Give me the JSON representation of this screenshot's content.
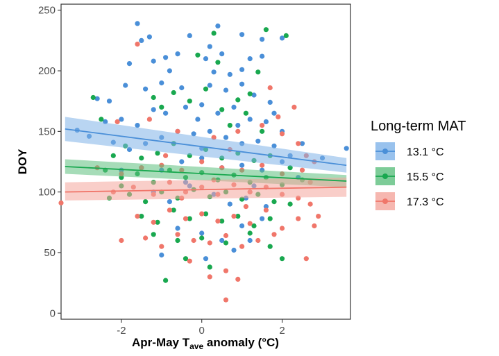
{
  "chart_data": {
    "type": "scatter",
    "title": "",
    "xlabel_prefix": "Apr-May T",
    "xlabel_sub": "ave",
    "xlabel_suffix": " anomaly (°C)",
    "ylabel": "DOY",
    "xlim": [
      -3.5,
      3.7
    ],
    "ylim": [
      -5,
      255
    ],
    "x_ticks": [
      -2,
      0,
      2
    ],
    "x_tick_labels": [
      "-2",
      "0",
      "2"
    ],
    "y_ticks": [
      0,
      50,
      100,
      150,
      200,
      250
    ],
    "y_tick_labels": [
      "0",
      "50",
      "100",
      "150",
      "200",
      "250"
    ],
    "grid": false,
    "legend": {
      "title": "Long-term MAT",
      "placement": "right"
    },
    "series": [
      {
        "name": "13.1 °C",
        "color": "#4a8fd8",
        "band_color": "#7fb3e8",
        "trend": {
          "x0": -3.4,
          "y0": 152,
          "x1": 3.6,
          "y1": 122,
          "lower0": 142,
          "upper0": 162,
          "lower1": 116,
          "upper1": 128
        },
        "points": [
          [
            -1.6,
            239
          ],
          [
            -1.5,
            225
          ],
          [
            -1.3,
            228
          ],
          [
            -0.3,
            229
          ],
          [
            0.4,
            237
          ],
          [
            1.0,
            230
          ],
          [
            1.5,
            226
          ],
          [
            2.0,
            227
          ],
          [
            -0.9,
            211
          ],
          [
            -0.6,
            214
          ],
          [
            0.1,
            210
          ],
          [
            0.2,
            220
          ],
          [
            0.5,
            214
          ],
          [
            1.2,
            210
          ],
          [
            1.5,
            212
          ],
          [
            -1.8,
            206
          ],
          [
            -1.2,
            208
          ],
          [
            -0.8,
            200
          ],
          [
            0.3,
            199
          ],
          [
            0.7,
            197
          ],
          [
            1.0,
            201
          ],
          [
            -2.6,
            177
          ],
          [
            -2.3,
            175
          ],
          [
            -1.9,
            188
          ],
          [
            -1.4,
            185
          ],
          [
            -1.0,
            190
          ],
          [
            -0.5,
            186
          ],
          [
            0.2,
            188
          ],
          [
            0.6,
            184
          ],
          [
            1.0,
            189
          ],
          [
            1.3,
            180
          ],
          [
            1.7,
            174
          ],
          [
            -3.1,
            151
          ],
          [
            -2.8,
            146
          ],
          [
            -2.4,
            158
          ],
          [
            -2.0,
            160
          ],
          [
            -1.6,
            155
          ],
          [
            -1.2,
            168
          ],
          [
            -0.9,
            165
          ],
          [
            -0.4,
            170
          ],
          [
            0.0,
            172
          ],
          [
            0.4,
            165
          ],
          [
            0.8,
            170
          ],
          [
            1.2,
            160
          ],
          [
            1.6,
            158
          ],
          [
            2.0,
            150
          ],
          [
            2.5,
            140
          ],
          [
            3.0,
            128
          ],
          [
            3.6,
            136
          ],
          [
            -2.2,
            141
          ],
          [
            -1.8,
            135
          ],
          [
            -1.4,
            140
          ],
          [
            -1.0,
            145
          ],
          [
            -0.6,
            150
          ],
          [
            -0.2,
            148
          ],
          [
            0.2,
            150
          ],
          [
            0.6,
            145
          ],
          [
            1.0,
            140
          ],
          [
            1.4,
            142
          ],
          [
            1.8,
            138
          ],
          [
            2.2,
            130
          ],
          [
            -1.5,
            120
          ],
          [
            -1.0,
            118
          ],
          [
            -0.5,
            125
          ],
          [
            0.0,
            128
          ],
          [
            0.5,
            120
          ],
          [
            1.0,
            122
          ],
          [
            1.5,
            118
          ],
          [
            2.0,
            125
          ],
          [
            2.4,
            112
          ],
          [
            -1.2,
            100
          ],
          [
            -0.8,
            92
          ],
          [
            -0.3,
            105
          ],
          [
            0.3,
            98
          ],
          [
            0.7,
            90
          ],
          [
            1.1,
            95
          ],
          [
            1.6,
            88
          ],
          [
            -0.6,
            70
          ],
          [
            0.0,
            66
          ],
          [
            0.5,
            60
          ],
          [
            1.0,
            72
          ],
          [
            1.5,
            78
          ],
          [
            -1.0,
            48
          ],
          [
            0.1,
            45
          ],
          [
            0.8,
            52
          ],
          [
            1.2,
            60
          ],
          [
            -0.7,
            140
          ],
          [
            -0.1,
            160
          ],
          [
            0.9,
            155
          ],
          [
            1.8,
            165
          ],
          [
            -2.0,
            118
          ],
          [
            0.0,
            136
          ],
          [
            -0.4,
            108
          ],
          [
            1.3,
            105
          ]
        ]
      },
      {
        "name": "15.5 °C",
        "color": "#19a84f",
        "band_color": "#5cbf7e",
        "trend": {
          "x0": -3.4,
          "y0": 121,
          "x1": 3.6,
          "y1": 109,
          "lower0": 115,
          "upper0": 127,
          "lower1": 104,
          "upper1": 114
        },
        "points": [
          [
            0.3,
            231
          ],
          [
            1.6,
            234
          ],
          [
            2.1,
            229
          ],
          [
            -0.1,
            213
          ],
          [
            0.4,
            207
          ],
          [
            1.4,
            199
          ],
          [
            -1.2,
            178
          ],
          [
            -0.7,
            182
          ],
          [
            0.1,
            185
          ],
          [
            0.9,
            176
          ],
          [
            1.2,
            181
          ],
          [
            -2.7,
            178
          ],
          [
            -2.5,
            160
          ],
          [
            -1.0,
            170
          ],
          [
            -0.3,
            175
          ],
          [
            0.5,
            168
          ],
          [
            1.1,
            165
          ],
          [
            -2.2,
            130
          ],
          [
            -1.9,
            138
          ],
          [
            -1.5,
            128
          ],
          [
            -1.1,
            132
          ],
          [
            -0.7,
            140
          ],
          [
            -0.3,
            130
          ],
          [
            0.1,
            135
          ],
          [
            0.5,
            128
          ],
          [
            0.9,
            132
          ],
          [
            1.3,
            126
          ],
          [
            1.7,
            130
          ],
          [
            2.2,
            120
          ],
          [
            -2.4,
            118
          ],
          [
            -2.0,
            112
          ],
          [
            -1.6,
            115
          ],
          [
            -1.2,
            108
          ],
          [
            -0.8,
            118
          ],
          [
            -0.4,
            112
          ],
          [
            0.0,
            116
          ],
          [
            0.4,
            110
          ],
          [
            0.8,
            114
          ],
          [
            1.2,
            108
          ],
          [
            1.6,
            112
          ],
          [
            2.0,
            106
          ],
          [
            2.5,
            110
          ],
          [
            -1.8,
            98
          ],
          [
            -1.4,
            92
          ],
          [
            -1.0,
            100
          ],
          [
            -0.6,
            95
          ],
          [
            -0.2,
            102
          ],
          [
            0.2,
            96
          ],
          [
            0.6,
            100
          ],
          [
            1.0,
            94
          ],
          [
            1.4,
            98
          ],
          [
            1.8,
            92
          ],
          [
            2.2,
            90
          ],
          [
            -1.5,
            80
          ],
          [
            -1.1,
            75
          ],
          [
            -0.7,
            85
          ],
          [
            -0.3,
            78
          ],
          [
            0.1,
            82
          ],
          [
            0.5,
            76
          ],
          [
            0.9,
            80
          ],
          [
            1.3,
            72
          ],
          [
            1.7,
            78
          ],
          [
            -1.2,
            65
          ],
          [
            -0.6,
            60
          ],
          [
            0.0,
            62
          ],
          [
            0.6,
            58
          ],
          [
            1.2,
            66
          ],
          [
            1.7,
            55
          ],
          [
            -0.4,
            45
          ],
          [
            0.2,
            38
          ],
          [
            -0.9,
            27
          ],
          [
            2.0,
            45
          ],
          [
            -2.0,
            105
          ],
          [
            -2.3,
            95
          ],
          [
            1.5,
            150
          ],
          [
            0.7,
            155
          ]
        ]
      },
      {
        "name": "17.3 °C",
        "color": "#f0766a",
        "band_color": "#f4a59c",
        "trend": {
          "x0": -3.4,
          "y0": 100,
          "x1": 3.6,
          "y1": 104,
          "lower0": 93,
          "upper0": 108,
          "lower1": 96,
          "upper1": 112
        },
        "points": [
          [
            -1.6,
            222
          ],
          [
            1.7,
            186
          ],
          [
            -2.1,
            158
          ],
          [
            -1.3,
            160
          ],
          [
            -0.6,
            150
          ],
          [
            0.3,
            145
          ],
          [
            0.9,
            150
          ],
          [
            1.5,
            155
          ],
          [
            2.0,
            148
          ],
          [
            2.4,
            140
          ],
          [
            2.6,
            130
          ],
          [
            2.8,
            125
          ],
          [
            -2.6,
            120
          ],
          [
            -2.0,
            115
          ],
          [
            -1.5,
            120
          ],
          [
            -1.0,
            122
          ],
          [
            -0.5,
            118
          ],
          [
            0.0,
            125
          ],
          [
            0.5,
            120
          ],
          [
            1.0,
            118
          ],
          [
            1.5,
            122
          ],
          [
            2.0,
            115
          ],
          [
            2.5,
            118
          ],
          [
            2.7,
            108
          ],
          [
            -3.5,
            91
          ],
          [
            -2.2,
            100
          ],
          [
            -1.7,
            104
          ],
          [
            -1.2,
            98
          ],
          [
            -0.8,
            108
          ],
          [
            -0.4,
            100
          ],
          [
            0.0,
            104
          ],
          [
            0.4,
            98
          ],
          [
            0.8,
            106
          ],
          [
            1.2,
            100
          ],
          [
            1.6,
            104
          ],
          [
            2.0,
            98
          ],
          [
            2.4,
            95
          ],
          [
            2.7,
            90
          ],
          [
            2.9,
            80
          ],
          [
            -2.0,
            60
          ],
          [
            -1.6,
            80
          ],
          [
            -1.2,
            75
          ],
          [
            -0.8,
            85
          ],
          [
            -0.4,
            78
          ],
          [
            0.0,
            82
          ],
          [
            0.4,
            76
          ],
          [
            0.8,
            80
          ],
          [
            1.2,
            74
          ],
          [
            1.6,
            85
          ],
          [
            2.0,
            70
          ],
          [
            2.4,
            78
          ],
          [
            2.8,
            72
          ],
          [
            -1.4,
            62
          ],
          [
            -1.0,
            55
          ],
          [
            -0.6,
            65
          ],
          [
            -0.2,
            60
          ],
          [
            0.2,
            58
          ],
          [
            0.6,
            64
          ],
          [
            1.0,
            55
          ],
          [
            1.4,
            60
          ],
          [
            1.8,
            65
          ],
          [
            2.6,
            45
          ],
          [
            -0.3,
            43
          ],
          [
            0.2,
            30
          ],
          [
            0.6,
            35
          ],
          [
            0.9,
            28
          ],
          [
            0.6,
            11
          ],
          [
            -0.5,
            95
          ],
          [
            0.3,
            110
          ],
          [
            1.1,
            88
          ],
          [
            -0.9,
            130
          ],
          [
            0.7,
            135
          ],
          [
            1.9,
            162
          ],
          [
            2.3,
            170
          ]
        ]
      }
    ]
  }
}
